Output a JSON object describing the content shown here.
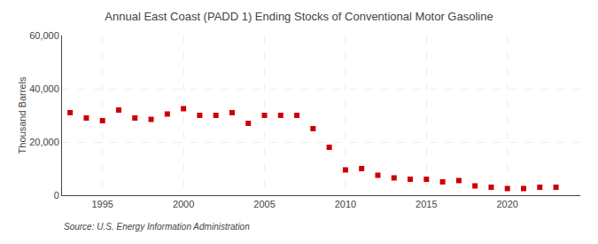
{
  "chart_data": {
    "type": "scatter",
    "title": "Annual East Coast (PADD 1) Ending Stocks of Conventional Motor Gasoline",
    "ylabel": "Thousand Barrels",
    "source": "Source: U.S. Energy Information Administration",
    "x": [
      1993,
      1994,
      1995,
      1996,
      1997,
      1998,
      1999,
      2000,
      2001,
      2002,
      2003,
      2004,
      2005,
      2006,
      2007,
      2008,
      2009,
      2010,
      2011,
      2012,
      2013,
      2014,
      2015,
      2016,
      2017,
      2018,
      2019,
      2020,
      2021,
      2022,
      2023
    ],
    "values": [
      31000,
      29000,
      28000,
      32000,
      29000,
      28500,
      30500,
      32500,
      30000,
      30000,
      31000,
      27000,
      30000,
      30000,
      30000,
      25000,
      18000,
      9500,
      10000,
      7500,
      6500,
      6000,
      6000,
      5000,
      5500,
      3500,
      3000,
      2500,
      2500,
      3000,
      3000
    ],
    "color": "#cc0000",
    "marker": "square",
    "xlim": [
      1992.5,
      2024.5
    ],
    "xticks": [
      1995,
      2000,
      2005,
      2010,
      2015,
      2020
    ],
    "ylim": [
      0,
      60000
    ],
    "yticks": [
      0,
      {
        "value": 20000,
        "label": "20,000"
      },
      {
        "value": 40000,
        "label": "40,000"
      },
      {
        "value": 60000,
        "label": "60,000"
      }
    ],
    "grid": true
  }
}
